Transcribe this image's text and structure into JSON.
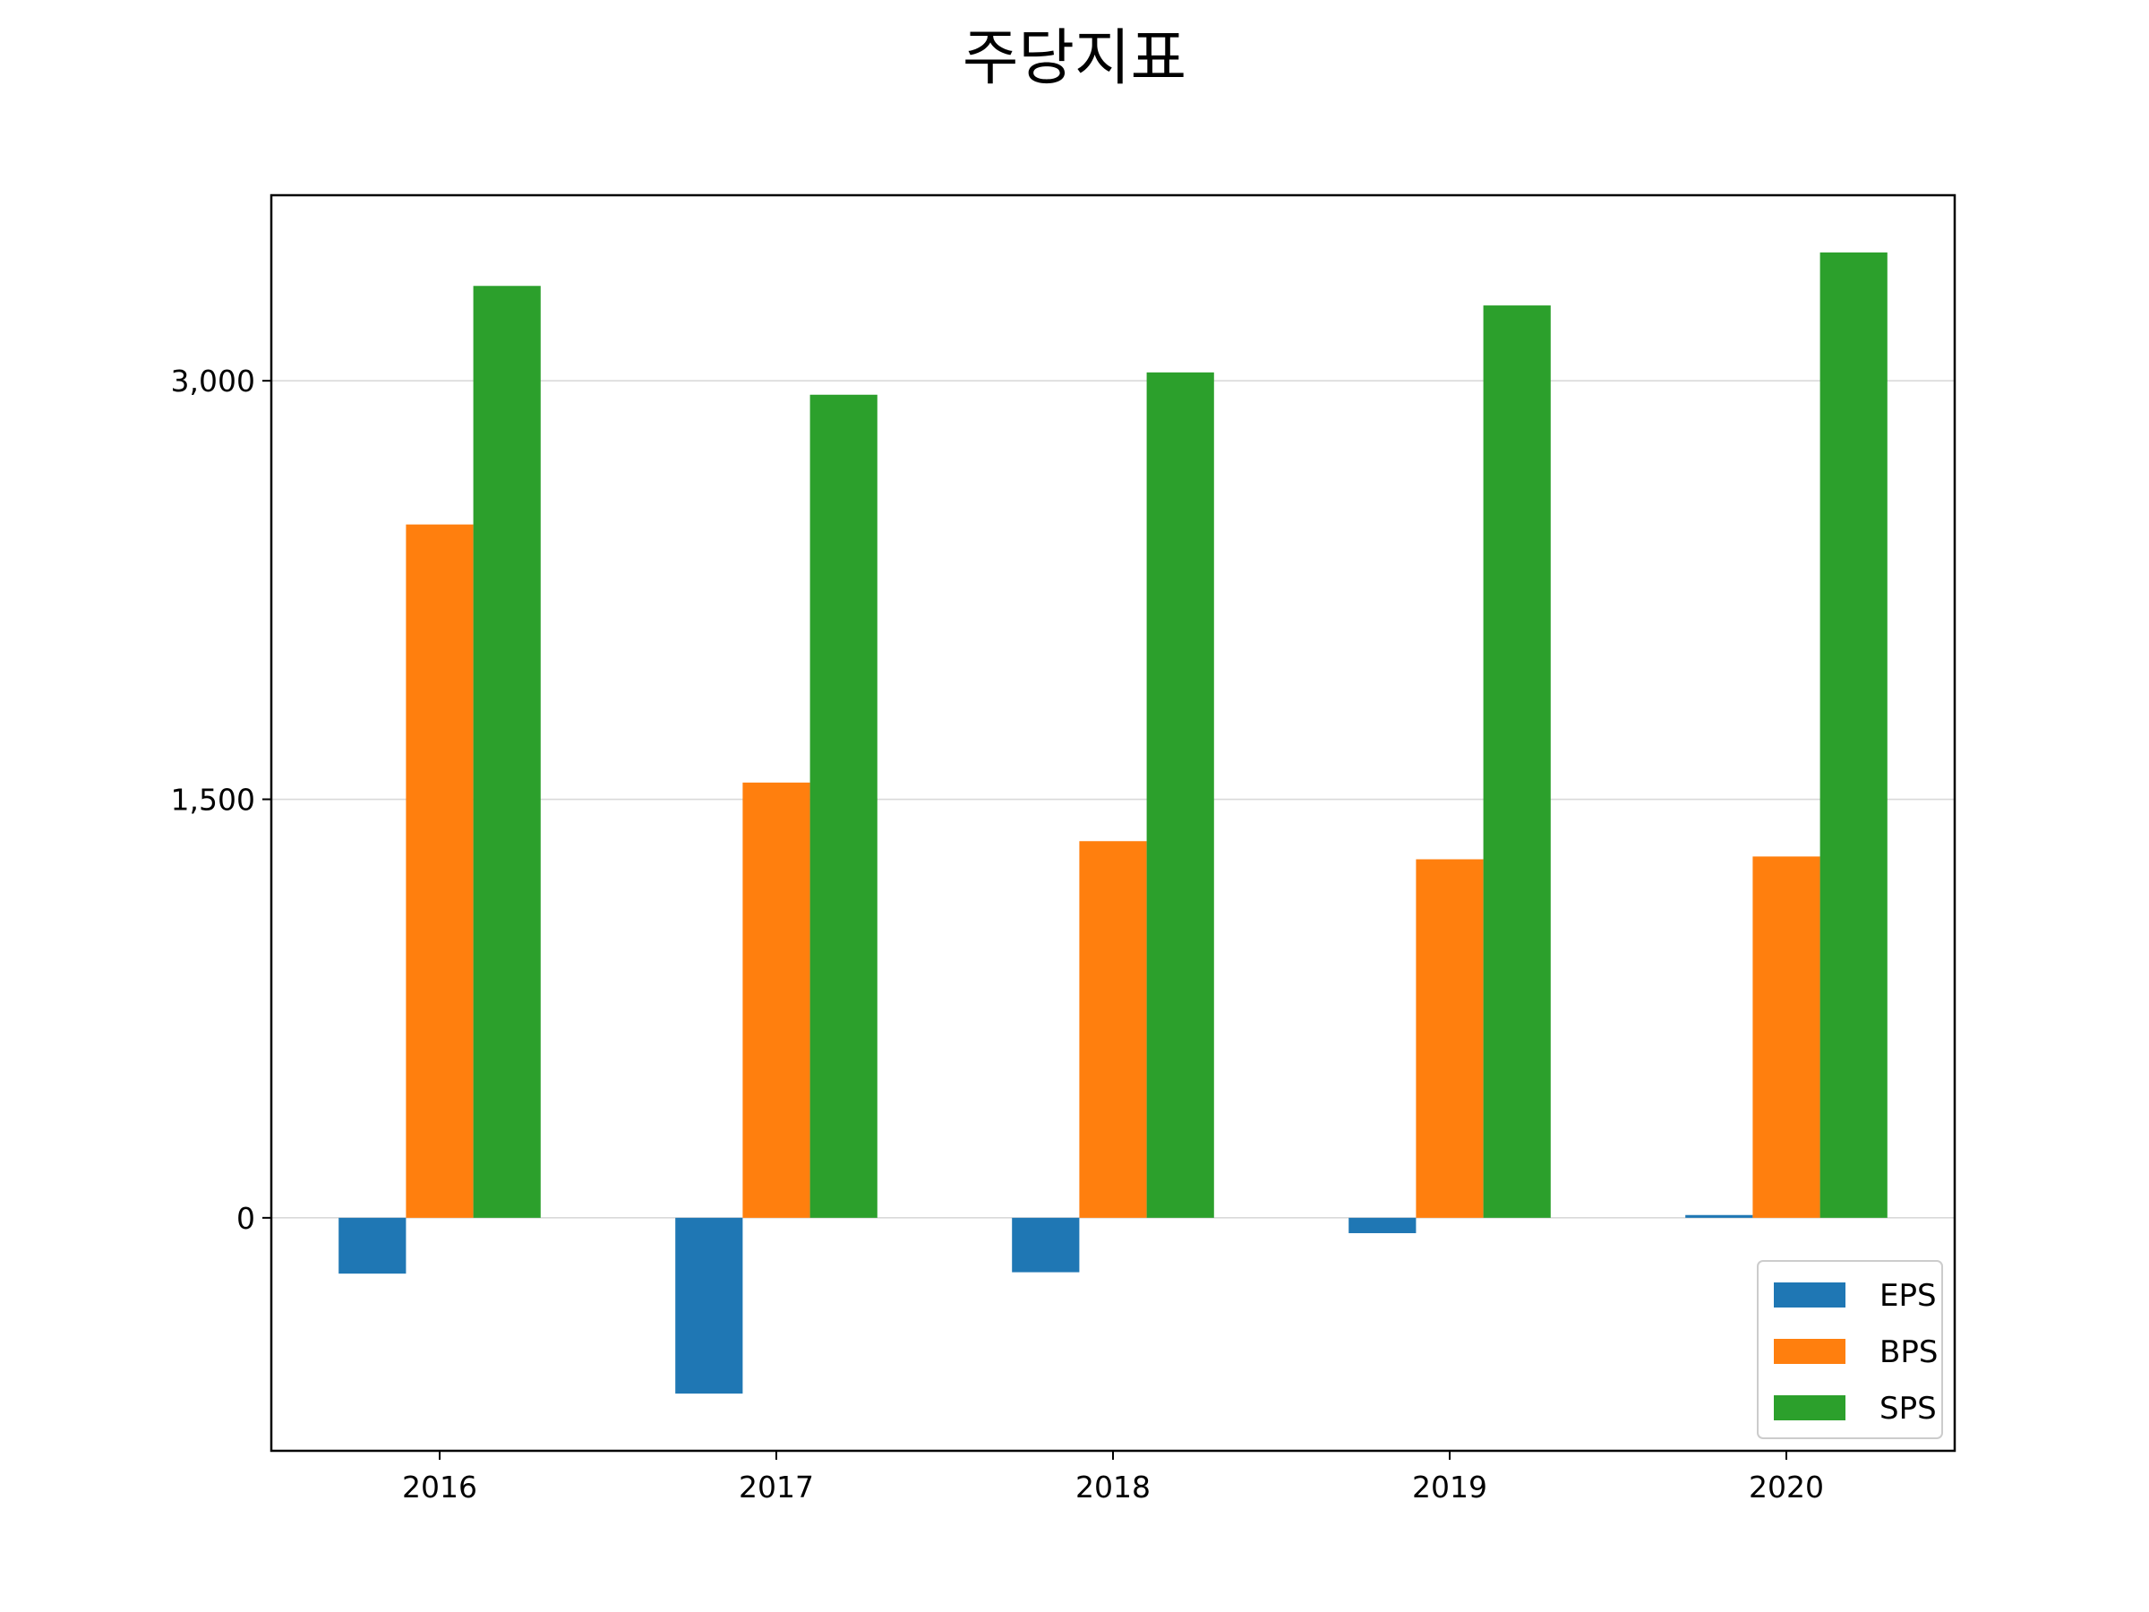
{
  "chart_data": {
    "type": "bar",
    "title": "주당지표",
    "xlabel": "",
    "ylabel": "",
    "categories": [
      "2016",
      "2017",
      "2018",
      "2019",
      "2020"
    ],
    "series": [
      {
        "name": "EPS",
        "color": "#1f77b4",
        "values": [
          -200,
          -630,
          -195,
          -55,
          10
        ]
      },
      {
        "name": "BPS",
        "color": "#ff7f0e",
        "values": [
          2485,
          1560,
          1350,
          1285,
          1295
        ]
      },
      {
        "name": "SPS",
        "color": "#2ca02c",
        "values": [
          3340,
          2950,
          3030,
          3270,
          3460
        ]
      }
    ],
    "ylim": [
      -835,
      3665
    ],
    "yticks": [
      0,
      1500,
      3000
    ],
    "ytick_labels": [
      "0",
      "1,500",
      "3,000"
    ],
    "grid": true,
    "legend_position": "lower-right"
  }
}
